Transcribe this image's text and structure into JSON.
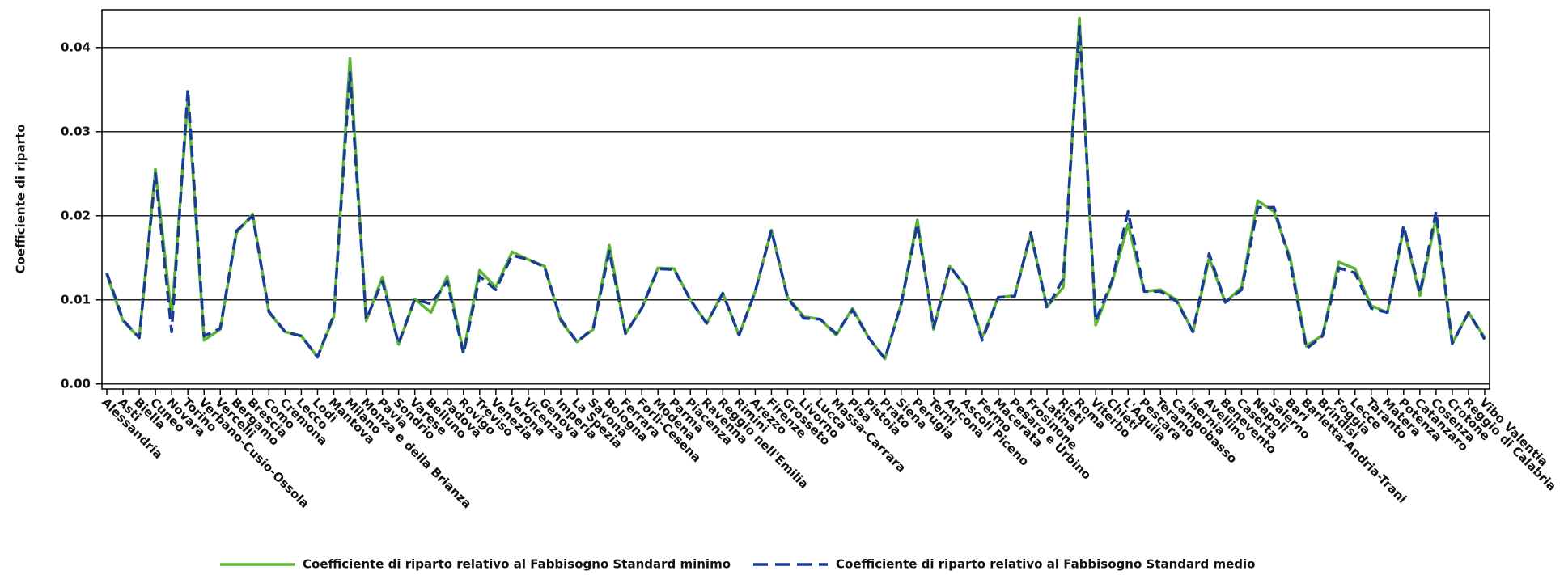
{
  "chart_data": {
    "type": "line",
    "y_label": "Coefficiente di riparto",
    "categories": [
      "Alessandria",
      "Asti",
      "Biella",
      "Cuneo",
      "Novara",
      "Torino",
      "Verbano-Cusio-Ossola",
      "Vercelli",
      "Bergamo",
      "Brescia",
      "Como",
      "Cremona",
      "Lecco",
      "Lodi",
      "Mantova",
      "Milano",
      "Monza e della Brianza",
      "Pavia",
      "Sondrio",
      "Varese",
      "Belluno",
      "Padova",
      "Rovigo",
      "Treviso",
      "Venezia",
      "Verona",
      "Vicenza",
      "Genova",
      "Imperia",
      "La Spezia",
      "Savona",
      "Bologna",
      "Ferrara",
      "Forlì-Cesena",
      "Modena",
      "Parma",
      "Piacenza",
      "Ravenna",
      "Reggio nell'Emilia",
      "Rimini",
      "Arezzo",
      "Firenze",
      "Grosseto",
      "Livorno",
      "Lucca",
      "Massa-Carrara",
      "Pisa",
      "Pistoia",
      "Prato",
      "Siena",
      "Perugia",
      "Terni",
      "Ancona",
      "Ascoli Piceno",
      "Fermo",
      "Macerata",
      "Pesaro e Urbino",
      "Frosinone",
      "Latina",
      "Rieti",
      "Roma",
      "Viterbo",
      "Chieti",
      "L'Aquila",
      "Pescara",
      "Teramo",
      "Campobasso",
      "Isernia",
      "Avellino",
      "Benevento",
      "Caserta",
      "Napoli",
      "Salerno",
      "Bari",
      "Barletta-Andria-Trani",
      "Brindisi",
      "Foggia",
      "Lecce",
      "Taranto",
      "Matera",
      "Potenza",
      "Catanzaro",
      "Cosenza",
      "Crotone",
      "Reggio di Calabria",
      "Vibo Valentia"
    ],
    "series": [
      {
        "name": "Coefficiente di riparto relativo al Fabbisogno Standard minimo",
        "color": "#5cb531",
        "dash": false,
        "values": [
          0.013,
          0.0075,
          0.0055,
          0.0255,
          0.008,
          0.034,
          0.0052,
          0.0065,
          0.018,
          0.0202,
          0.0085,
          0.0062,
          0.0057,
          0.0032,
          0.008,
          0.0387,
          0.0075,
          0.0127,
          0.0047,
          0.0101,
          0.0085,
          0.0128,
          0.0038,
          0.0135,
          0.0115,
          0.0157,
          0.0148,
          0.014,
          0.0075,
          0.005,
          0.0065,
          0.0165,
          0.006,
          0.009,
          0.0138,
          0.0137,
          0.01,
          0.0072,
          0.0108,
          0.0058,
          0.011,
          0.0183,
          0.0103,
          0.008,
          0.0077,
          0.0058,
          0.009,
          0.0055,
          0.003,
          0.0095,
          0.0195,
          0.0065,
          0.014,
          0.0115,
          0.0055,
          0.0103,
          0.0105,
          0.0178,
          0.0092,
          0.0115,
          0.0435,
          0.007,
          0.012,
          0.019,
          0.011,
          0.0112,
          0.01,
          0.0062,
          0.015,
          0.0097,
          0.0115,
          0.0218,
          0.0205,
          0.015,
          0.0045,
          0.0058,
          0.0145,
          0.0137,
          0.0093,
          0.0085,
          0.0185,
          0.0105,
          0.0198,
          0.0048,
          0.0085,
          0.0055
        ]
      },
      {
        "name": "Coefficiente di riparto relativo al Fabbisogno Standard medio",
        "color": "#1a3a9a",
        "dash": true,
        "values": [
          0.0132,
          0.0076,
          0.0055,
          0.025,
          0.0062,
          0.035,
          0.0057,
          0.0066,
          0.0182,
          0.02,
          0.0086,
          0.0062,
          0.0057,
          0.0032,
          0.0082,
          0.037,
          0.0077,
          0.0122,
          0.0048,
          0.0101,
          0.0095,
          0.0122,
          0.0036,
          0.0128,
          0.0112,
          0.0153,
          0.0148,
          0.0139,
          0.0077,
          0.005,
          0.0066,
          0.0158,
          0.006,
          0.009,
          0.0137,
          0.0136,
          0.01,
          0.0072,
          0.0108,
          0.0058,
          0.011,
          0.0183,
          0.0102,
          0.0078,
          0.0077,
          0.006,
          0.0088,
          0.0055,
          0.003,
          0.0095,
          0.019,
          0.0067,
          0.014,
          0.0115,
          0.0052,
          0.0103,
          0.0104,
          0.018,
          0.009,
          0.0125,
          0.0425,
          0.0075,
          0.0122,
          0.0205,
          0.011,
          0.011,
          0.0098,
          0.0062,
          0.0155,
          0.0097,
          0.0112,
          0.021,
          0.021,
          0.0145,
          0.0042,
          0.0057,
          0.0138,
          0.0132,
          0.009,
          0.0085,
          0.0188,
          0.0108,
          0.0205,
          0.0048,
          0.0085,
          0.0053
        ]
      }
    ],
    "ylim": [
      -0.0006,
      0.0445
    ],
    "yticks": [
      {
        "value": 0,
        "label": "0.00"
      },
      0.01,
      0.02,
      0.03,
      0.04
    ],
    "grid": true,
    "legend": "bottom"
  }
}
